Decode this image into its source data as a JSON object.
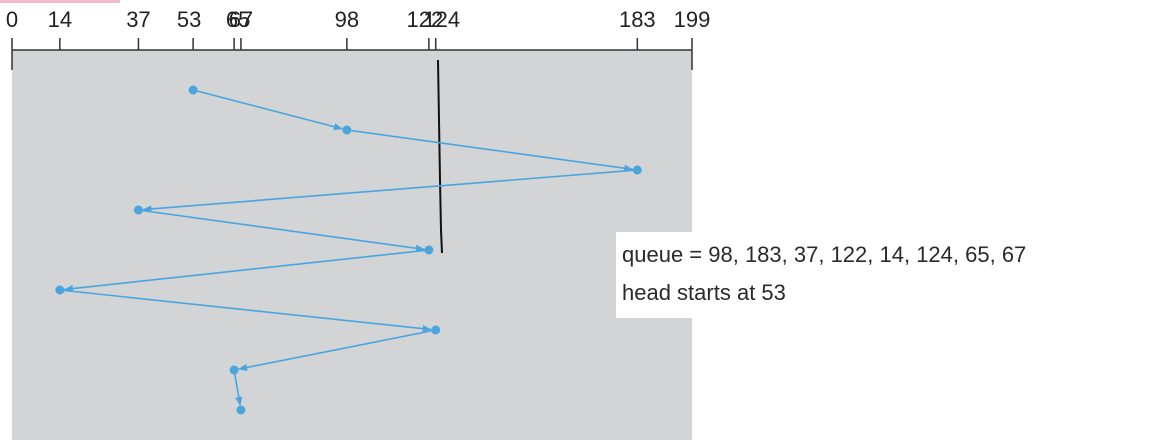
{
  "diagram": {
    "axis": {
      "min": 0,
      "max": 199,
      "ticks": [
        0,
        14,
        37,
        53,
        65,
        67,
        98,
        122,
        124,
        183,
        199
      ],
      "tick_labels": [
        "0",
        "14",
        "37",
        "53",
        "65",
        "67",
        "98",
        "122",
        "124",
        "183",
        "199"
      ]
    },
    "head_path": [
      53,
      98,
      183,
      37,
      122,
      14,
      124,
      65,
      67
    ],
    "marker_value": 124
  },
  "caption": {
    "queue_line": "queue = 98, 183, 37, 122, 14, 124, 65, 67",
    "head_line": "head starts at 53"
  },
  "colors": {
    "path": "#4aa5de",
    "panel": "#d2d4d6",
    "axis": "#333333",
    "marker": "#111111",
    "accent_bar": "#f2b8cc"
  }
}
